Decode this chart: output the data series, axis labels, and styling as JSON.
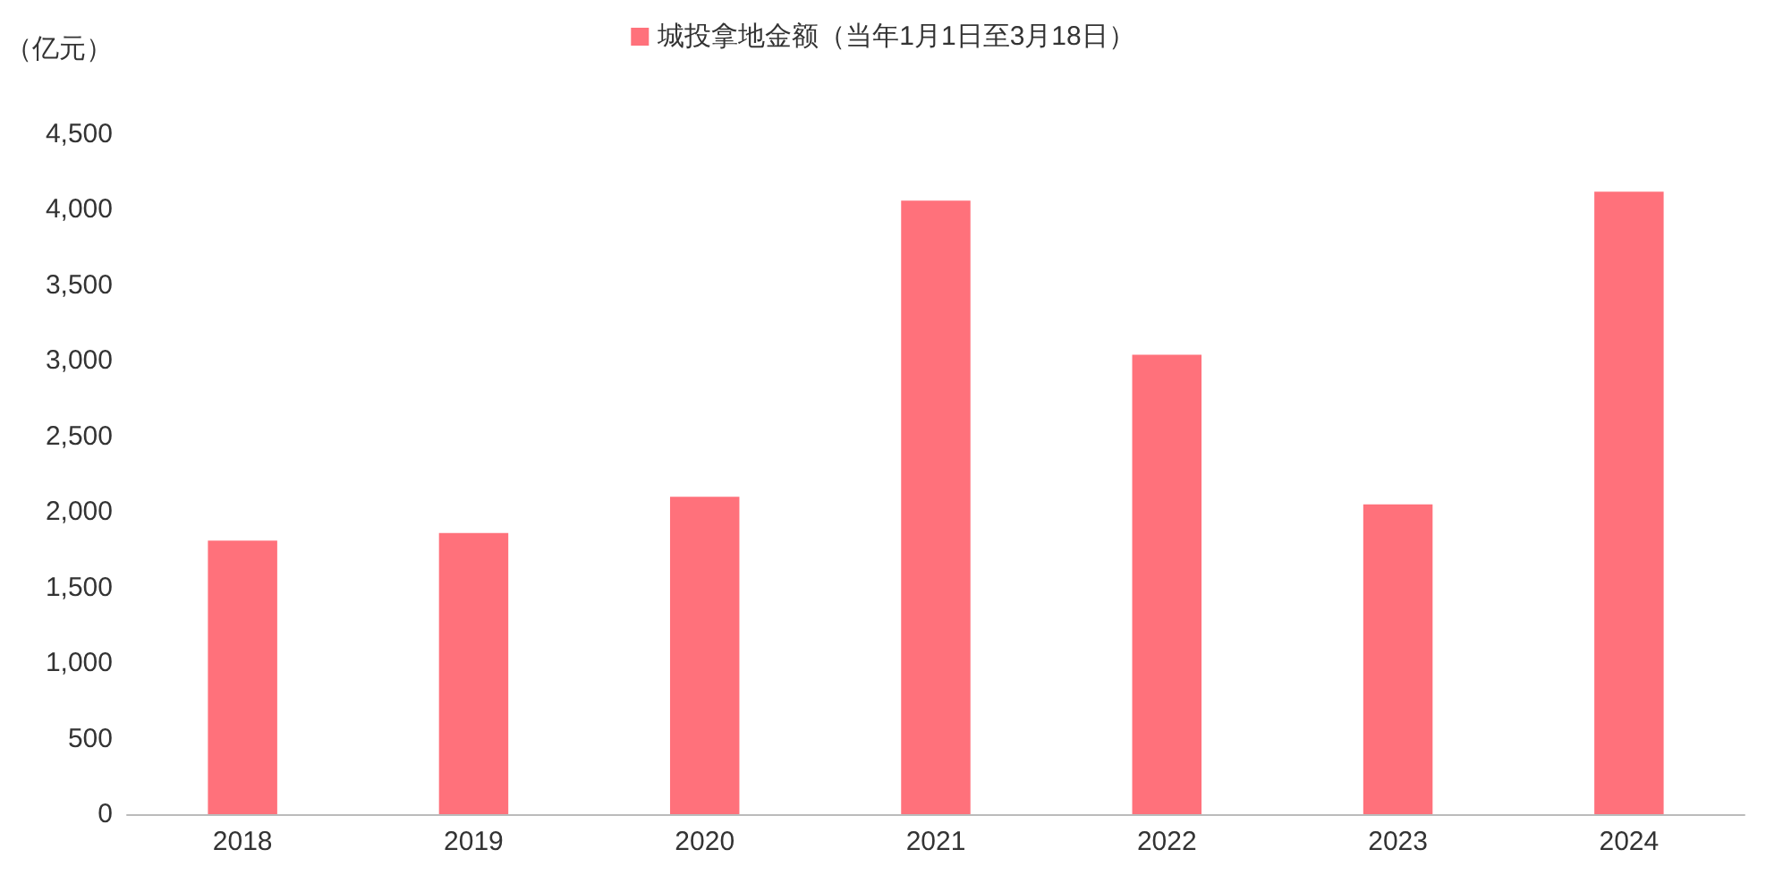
{
  "chart_data": {
    "type": "bar",
    "ylabel": "（亿元）",
    "categories": [
      "2018",
      "2019",
      "2020",
      "2021",
      "2022",
      "2023",
      "2024"
    ],
    "series": [
      {
        "name": "城投拿地金额（当年1月1日至3月18日）",
        "color": "#ff717b",
        "values": [
          1810,
          1860,
          2100,
          4060,
          3040,
          2050,
          4120
        ]
      }
    ],
    "ylim": [
      0,
      4500
    ],
    "yticks": [
      {
        "value": 0,
        "label": "0"
      },
      {
        "value": 500,
        "label": "500"
      },
      {
        "value": 1000,
        "label": "1,000"
      },
      {
        "value": 1500,
        "label": "1,500"
      },
      {
        "value": 2000,
        "label": "2,000"
      },
      {
        "value": 2500,
        "label": "2,500"
      },
      {
        "value": 3000,
        "label": "3,000"
      },
      {
        "value": 3500,
        "label": "3,500"
      },
      {
        "value": 4000,
        "label": "4,000"
      },
      {
        "value": 4500,
        "label": "4,500"
      }
    ],
    "grid": false,
    "legend": "top"
  }
}
